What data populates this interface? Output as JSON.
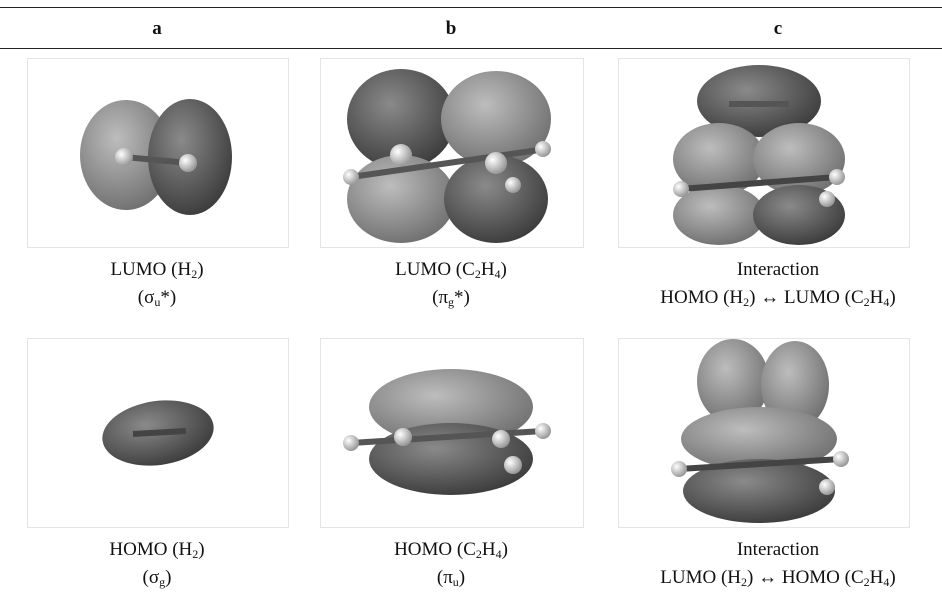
{
  "header": [
    "a",
    "b",
    "c"
  ],
  "rows": [
    {
      "cells": [
        {
          "caption": [
            [
              {
                "text": "LUMO (H"
              },
              {
                "sub": "2"
              },
              {
                "text": ")"
              }
            ],
            [
              {
                "text": "(σ"
              },
              {
                "sub": "u"
              },
              {
                "text": "*)"
              }
            ]
          ]
        },
        {
          "caption": [
            [
              {
                "text": "LUMO (C"
              },
              {
                "sub": "2"
              },
              {
                "text": "H"
              },
              {
                "sub": "4"
              },
              {
                "text": ")"
              }
            ],
            [
              {
                "text": "(π"
              },
              {
                "sub": "g"
              },
              {
                "text": "*)"
              }
            ]
          ]
        },
        {
          "caption": [
            [
              {
                "text": "Interaction"
              }
            ],
            [
              {
                "text": "HOMO (H"
              },
              {
                "sub": "2"
              },
              {
                "text": ") ↔ LUMO (C"
              },
              {
                "sub": "2"
              },
              {
                "text": "H"
              },
              {
                "sub": "4"
              },
              {
                "text": ")"
              }
            ]
          ]
        }
      ]
    },
    {
      "cells": [
        {
          "caption": [
            [
              {
                "text": "HOMO (H"
              },
              {
                "sub": "2"
              },
              {
                "text": ")"
              }
            ],
            [
              {
                "text": "(σ"
              },
              {
                "sub": "g"
              },
              {
                "text": ")"
              }
            ]
          ]
        },
        {
          "caption": [
            [
              {
                "text": "HOMO (C"
              },
              {
                "sub": "2"
              },
              {
                "text": "H"
              },
              {
                "sub": "4"
              },
              {
                "text": ")"
              }
            ],
            [
              {
                "text": "(π"
              },
              {
                "sub": "u"
              },
              {
                "text": ")"
              }
            ]
          ]
        },
        {
          "caption": [
            [
              {
                "text": "Interaction"
              }
            ],
            [
              {
                "text": "LUMO (H"
              },
              {
                "sub": "2"
              },
              {
                "text": ") ↔ HOMO (C"
              },
              {
                "sub": "2"
              },
              {
                "text": "H"
              },
              {
                "sub": "4"
              },
              {
                "text": ")"
              }
            ]
          ]
        }
      ]
    }
  ]
}
